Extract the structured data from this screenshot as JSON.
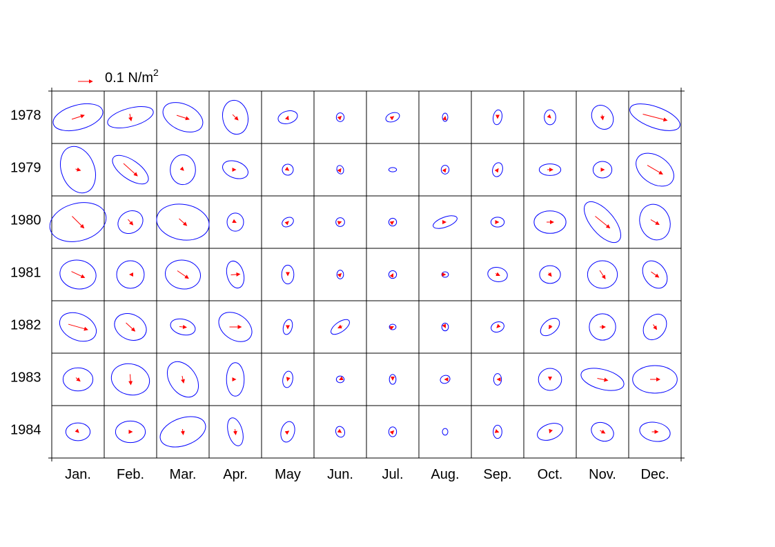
{
  "chart_data": {
    "type": "vector-ellipse-grid",
    "scale_vector": {
      "value": 0.1,
      "label_prefix": "0.1 N/m",
      "label_exponent": "2"
    },
    "row_labels": [
      "1978",
      "1979",
      "1980",
      "1981",
      "1982",
      "1983",
      "1984"
    ],
    "column_labels": [
      "Jan.",
      "Feb.",
      "Mar.",
      "Apr.",
      "May",
      "Jun.",
      "Jul.",
      "Aug.",
      "Sep.",
      "Oct.",
      "Nov.",
      "Dec."
    ],
    "mean_vector_color": "#ff0000",
    "ellipse_color": "#0000ff",
    "grid": true,
    "cells": [
      [
        {
          "ell": [
            0.222,
            0.106,
            -15
          ],
          "vec": [
            0.086,
            0.028
          ]
        },
        {
          "ell": [
            0.205,
            0.079,
            -15
          ],
          "vec": [
            0.01,
            -0.048
          ]
        },
        {
          "ell": [
            0.184,
            0.113,
            25
          ],
          "vec": [
            0.086,
            -0.028
          ]
        },
        {
          "ell": [
            0.11,
            0.149,
            -10
          ],
          "vec": [
            0.038,
            -0.038
          ]
        },
        {
          "ell": [
            0.086,
            0.054,
            -15
          ],
          "vec": [
            0.005,
            0.014
          ]
        },
        {
          "ell": [
            0.034,
            0.038,
            0
          ],
          "vec": [
            0.014,
            0.014
          ]
        },
        {
          "ell": [
            0.062,
            0.038,
            -20
          ],
          "vec": [
            0.014,
            0.01
          ]
        },
        {
          "ell": [
            0.024,
            0.036,
            0
          ],
          "vec": [
            0.002,
            0.01
          ]
        },
        {
          "ell": [
            0.038,
            0.065,
            10
          ],
          "vec": [
            0.0,
            -0.014
          ]
        },
        {
          "ell": [
            0.05,
            0.065,
            0
          ],
          "vec": [
            0.01,
            -0.01
          ]
        },
        {
          "ell": [
            0.089,
            0.11,
            -30
          ],
          "vec": [
            0.005,
            -0.034
          ]
        },
        {
          "ell": [
            0.23,
            0.091,
            20
          ],
          "vec": [
            0.168,
            -0.043
          ]
        }
      ],
      [
        {
          "ell": [
            0.144,
            0.209,
            -20
          ],
          "vec": [
            0.034,
            -0.01
          ]
        },
        {
          "ell": [
            0.182,
            0.082,
            35
          ],
          "vec": [
            0.096,
            -0.086
          ]
        },
        {
          "ell": [
            0.11,
            0.13,
            0
          ],
          "vec": [
            0.01,
            -0.01
          ]
        },
        {
          "ell": [
            0.115,
            0.072,
            20
          ],
          "vec": [
            0.005,
            0.0
          ]
        },
        {
          "ell": [
            0.048,
            0.048,
            20
          ],
          "vec": [
            0.014,
            -0.01
          ]
        },
        {
          "ell": [
            0.029,
            0.038,
            -20
          ],
          "vec": [
            0.01,
            0.014
          ]
        },
        {
          "ell": [
            0.034,
            0.019,
            0
          ],
          "vec": [
            0.002,
            0.0
          ]
        },
        {
          "ell": [
            0.034,
            0.038,
            0
          ],
          "vec": [
            0.01,
            0.014
          ]
        },
        {
          "ell": [
            0.043,
            0.062,
            15
          ],
          "vec": [
            0.01,
            0.014
          ]
        },
        {
          "ell": [
            0.094,
            0.05,
            0
          ],
          "vec": [
            0.038,
            0.0
          ]
        },
        {
          "ell": [
            0.082,
            0.072,
            0
          ],
          "vec": [
            0.024,
            0.0
          ]
        },
        {
          "ell": [
            0.182,
            0.12,
            35
          ],
          "vec": [
            0.106,
            -0.062
          ]
        }
      ],
      [
        {
          "ell": [
            0.25,
            0.163,
            -15
          ],
          "vec": [
            0.082,
            -0.082
          ]
        },
        {
          "ell": [
            0.113,
            0.094,
            -30
          ],
          "vec": [
            0.034,
            -0.038
          ]
        },
        {
          "ell": [
            0.23,
            0.154,
            10
          ],
          "vec": [
            0.053,
            -0.048
          ]
        },
        {
          "ell": [
            0.072,
            0.079,
            0
          ],
          "vec": [
            0.01,
            -0.005
          ]
        },
        {
          "ell": [
            0.053,
            0.038,
            -30
          ],
          "vec": [
            0.01,
            0.01
          ]
        },
        {
          "ell": [
            0.038,
            0.038,
            0
          ],
          "vec": [
            0.014,
            0.005
          ]
        },
        {
          "ell": [
            0.034,
            0.034,
            0
          ],
          "vec": [
            0.014,
            0.01
          ]
        },
        {
          "ell": [
            0.11,
            0.043,
            -20
          ],
          "vec": [
            0.01,
            0.0
          ]
        },
        {
          "ell": [
            0.058,
            0.043,
            0
          ],
          "vec": [
            0.014,
            0.0
          ]
        },
        {
          "ell": [
            0.139,
            0.098,
            0
          ],
          "vec": [
            0.048,
            0.0
          ]
        },
        {
          "ell": [
            0.216,
            0.101,
            50
          ],
          "vec": [
            0.101,
            -0.082
          ]
        },
        {
          "ell": [
            0.13,
            0.158,
            -20
          ],
          "vec": [
            0.058,
            -0.034
          ]
        }
      ],
      [
        {
          "ell": [
            0.158,
            0.125,
            10
          ],
          "vec": [
            0.091,
            -0.043
          ]
        },
        {
          "ell": [
            0.12,
            0.12,
            0
          ],
          "vec": [
            -0.01,
            0.0
          ]
        },
        {
          "ell": [
            0.154,
            0.125,
            10
          ],
          "vec": [
            0.077,
            -0.053
          ]
        },
        {
          "ell": [
            0.072,
            0.12,
            -15
          ],
          "vec": [
            0.062,
            0.005
          ]
        },
        {
          "ell": [
            0.053,
            0.082,
            0
          ],
          "vec": [
            0.0,
            -0.014
          ]
        },
        {
          "ell": [
            0.029,
            0.038,
            0
          ],
          "vec": [
            0.014,
            0.014
          ]
        },
        {
          "ell": [
            0.034,
            0.034,
            0
          ],
          "vec": [
            0.005,
            0.01
          ]
        },
        {
          "ell": [
            0.029,
            0.024,
            0
          ],
          "vec": [
            0.005,
            0.0
          ]
        },
        {
          "ell": [
            0.086,
            0.062,
            10
          ],
          "vec": [
            0.029,
            -0.014
          ]
        },
        {
          "ell": [
            0.091,
            0.077,
            0
          ],
          "vec": [
            0.019,
            -0.024
          ]
        },
        {
          "ell": [
            0.13,
            0.12,
            0
          ],
          "vec": [
            0.038,
            -0.058
          ]
        },
        {
          "ell": [
            0.094,
            0.13,
            -35
          ],
          "vec": [
            0.053,
            -0.038
          ]
        }
      ],
      [
        {
          "ell": [
            0.168,
            0.113,
            25
          ],
          "vec": [
            0.134,
            -0.038
          ]
        },
        {
          "ell": [
            0.144,
            0.11,
            25
          ],
          "vec": [
            0.062,
            -0.058
          ]
        },
        {
          "ell": [
            0.11,
            0.067,
            15
          ],
          "vec": [
            0.048,
            -0.005
          ]
        },
        {
          "ell": [
            0.158,
            0.11,
            35
          ],
          "vec": [
            0.082,
            0.0
          ]
        },
        {
          "ell": [
            0.038,
            0.067,
            15
          ],
          "vec": [
            0.0,
            -0.024
          ]
        },
        {
          "ell": [
            0.094,
            0.043,
            -35
          ],
          "vec": [
            -0.029,
            -0.014
          ]
        },
        {
          "ell": [
            0.029,
            0.024,
            0
          ],
          "vec": [
            0.01,
            0.005
          ]
        },
        {
          "ell": [
            0.029,
            0.034,
            0
          ],
          "vec": [
            0.005,
            -0.01
          ]
        },
        {
          "ell": [
            0.058,
            0.043,
            -20
          ],
          "vec": [
            -0.01,
            -0.01
          ]
        },
        {
          "ell": [
            0.096,
            0.058,
            -40
          ],
          "vec": [
            -0.014,
            -0.024
          ]
        },
        {
          "ell": [
            0.115,
            0.115,
            0
          ],
          "vec": [
            0.038,
            0.0
          ]
        },
        {
          "ell": [
            0.12,
            0.091,
            -55
          ],
          "vec": [
            0.024,
            -0.034
          ]
        }
      ],
      [
        {
          "ell": [
            0.13,
            0.101,
            0
          ],
          "vec": [
            0.029,
            -0.024
          ]
        },
        {
          "ell": [
            0.168,
            0.134,
            15
          ],
          "vec": [
            0.005,
            -0.072
          ]
        },
        {
          "ell": [
            0.17,
            0.115,
            55
          ],
          "vec": [
            0.01,
            -0.048
          ]
        },
        {
          "ell": [
            0.077,
            0.146,
            0
          ],
          "vec": [
            0.005,
            0.0
          ]
        },
        {
          "ell": [
            0.043,
            0.072,
            10
          ],
          "vec": [
            -0.005,
            -0.019
          ]
        },
        {
          "ell": [
            0.034,
            0.029,
            0
          ],
          "vec": [
            -0.01,
            -0.005
          ]
        },
        {
          "ell": [
            0.029,
            0.043,
            0
          ],
          "vec": [
            0.0,
            -0.01
          ]
        },
        {
          "ell": [
            0.043,
            0.034,
            -20
          ],
          "vec": [
            -0.005,
            0.0
          ]
        },
        {
          "ell": [
            0.034,
            0.05,
            0
          ],
          "vec": [
            -0.005,
            0.0
          ]
        },
        {
          "ell": [
            0.101,
            0.096,
            0
          ],
          "vec": [
            0.0,
            -0.01
          ]
        },
        {
          "ell": [
            0.192,
            0.086,
            15
          ],
          "vec": [
            0.072,
            -0.014
          ]
        },
        {
          "ell": [
            0.194,
            0.12,
            0
          ],
          "vec": [
            0.067,
            0.0
          ]
        }
      ],
      [
        {
          "ell": [
            0.106,
            0.077,
            0
          ],
          "vec": [
            0.01,
            -0.01
          ]
        },
        {
          "ell": [
            0.13,
            0.094,
            0
          ],
          "vec": [
            0.024,
            0.0
          ]
        },
        {
          "ell": [
            0.206,
            0.119,
            -20
          ],
          "vec": [
            0.005,
            -0.038
          ]
        },
        {
          "ell": [
            0.062,
            0.125,
            -15
          ],
          "vec": [
            0.005,
            -0.038
          ]
        },
        {
          "ell": [
            0.058,
            0.091,
            15
          ],
          "vec": [
            0.014,
            0.01
          ]
        },
        {
          "ell": [
            0.038,
            0.048,
            -20
          ],
          "vec": [
            0.014,
            -0.01
          ]
        },
        {
          "ell": [
            0.034,
            0.043,
            0
          ],
          "vec": [
            0.014,
            0.014
          ]
        },
        {
          "ell": [
            0.024,
            0.029,
            0
          ],
          "vec": [
            0.0,
            0.0
          ]
        },
        {
          "ell": [
            0.038,
            0.058,
            0
          ],
          "vec": [
            0.014,
            -0.005
          ]
        },
        {
          "ell": [
            0.115,
            0.067,
            -20
          ],
          "vec": [
            -0.005,
            -0.014
          ]
        },
        {
          "ell": [
            0.101,
            0.077,
            25
          ],
          "vec": [
            0.034,
            -0.019
          ]
        },
        {
          "ell": [
            0.134,
            0.082,
            10
          ],
          "vec": [
            0.043,
            0.0
          ]
        }
      ]
    ]
  }
}
